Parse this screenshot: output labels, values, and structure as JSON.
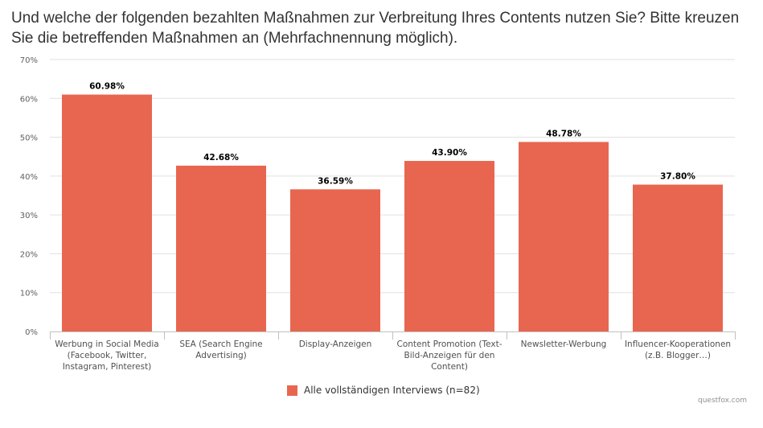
{
  "chart_data": {
    "type": "bar",
    "title": "Und welche der folgenden bezahlten Maßnahmen zur Verbreitung Ihres Contents nutzen Sie? Bitte kreuzen Sie die betreffenden Maßnahmen an (Mehrfachnennung möglich).",
    "categories": [
      [
        "Werbung in Social Media",
        "(Facebook, Twitter,",
        "Instagram, Pinterest)"
      ],
      [
        "SEA (Search Engine",
        "Advertising)"
      ],
      [
        "Display-Anzeigen"
      ],
      [
        "Content Promotion (Text-",
        "Bild-Anzeigen für den",
        "Content)"
      ],
      [
        "Newsletter-Werbung"
      ],
      [
        "Influencer-Kooperationen",
        "(z.B. Blogger…)"
      ]
    ],
    "series": [
      {
        "name": "Alle vollständigen Interviews (n=82)",
        "color": "#e8664f",
        "values": [
          60.98,
          42.68,
          36.59,
          43.9,
          48.78,
          37.8
        ],
        "labels": [
          "60.98%",
          "42.68%",
          "36.59%",
          "43.90%",
          "48.78%",
          "37.80%"
        ]
      }
    ],
    "yticks": [
      "0%",
      "10%",
      "20%",
      "30%",
      "40%",
      "50%",
      "60%",
      "70%"
    ],
    "ylim": [
      0,
      70
    ],
    "xlabel": "",
    "ylabel": "",
    "grid": true,
    "legend": "bottom-center"
  },
  "credit": "questfox.com"
}
